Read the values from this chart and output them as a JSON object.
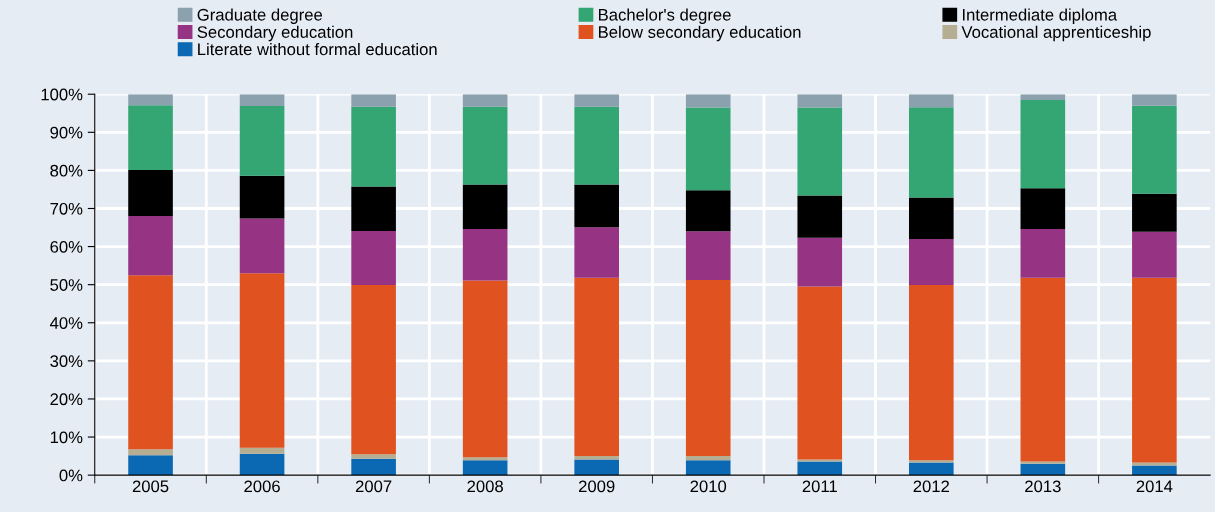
{
  "chart_data": {
    "type": "bar",
    "stacked": true,
    "categories": [
      "2005",
      "2006",
      "2007",
      "2008",
      "2009",
      "2010",
      "2011",
      "2012",
      "2013",
      "2014"
    ],
    "series": [
      {
        "name": "Literate without formal education",
        "color": "#0b69b3",
        "values": [
          5.2,
          5.6,
          4.3,
          3.9,
          4.1,
          3.9,
          3.6,
          3.3,
          3.0,
          2.5
        ]
      },
      {
        "name": "Vocational apprenticeship",
        "color": "#b5ae93",
        "values": [
          1.6,
          1.6,
          1.2,
          0.8,
          0.9,
          1.1,
          0.5,
          0.6,
          0.6,
          0.8
        ]
      },
      {
        "name": "Below secondary education",
        "color": "#e0521f",
        "values": [
          45.7,
          45.8,
          44.4,
          46.4,
          46.8,
          46.2,
          45.4,
          46.0,
          48.2,
          48.5
        ]
      },
      {
        "name": "Secondary education",
        "color": "#963382",
        "values": [
          15.5,
          14.4,
          14.2,
          13.5,
          13.3,
          12.8,
          12.8,
          12.1,
          12.8,
          12.1
        ]
      },
      {
        "name": "Intermediate diploma",
        "color": "#000000",
        "values": [
          12.1,
          11.2,
          11.7,
          11.7,
          11.2,
          10.8,
          11.1,
          10.9,
          10.7,
          10.0
        ]
      },
      {
        "name": "Bachelor's degree",
        "color": "#33a673",
        "values": [
          17.0,
          18.3,
          20.9,
          20.4,
          20.4,
          21.7,
          23.1,
          23.7,
          23.2,
          23.1
        ]
      },
      {
        "name": "Graduate degree",
        "color": "#8ca1ae",
        "values": [
          2.9,
          3.1,
          3.3,
          3.3,
          3.3,
          3.5,
          3.5,
          3.4,
          1.5,
          3.0
        ]
      }
    ],
    "ylim": [
      0,
      100
    ],
    "yticks": [
      {
        "value": 0,
        "label": "0%"
      },
      {
        "value": 10,
        "label": "10%"
      },
      {
        "value": 20,
        "label": "20%"
      },
      {
        "value": 30,
        "label": "30%"
      },
      {
        "value": 40,
        "label": "40%"
      },
      {
        "value": 50,
        "label": "50%"
      },
      {
        "value": 60,
        "label": "60%"
      },
      {
        "value": 70,
        "label": "70%"
      },
      {
        "value": 80,
        "label": "80%"
      },
      {
        "value": 90,
        "label": "90%"
      },
      {
        "value": 100,
        "label": "100%"
      }
    ],
    "grid": true,
    "legend": "top"
  }
}
